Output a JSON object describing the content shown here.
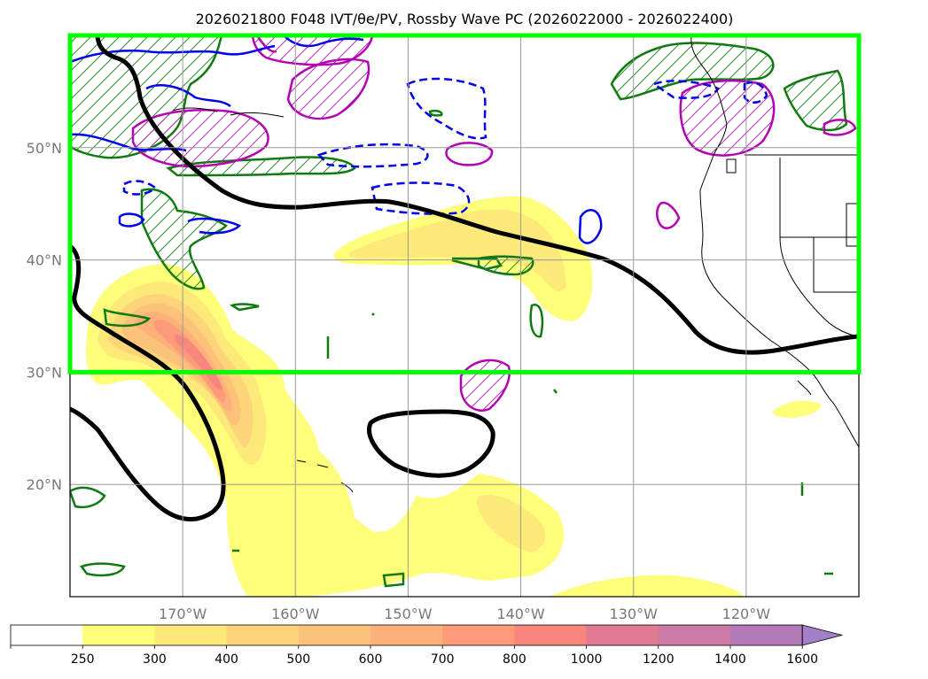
{
  "chart_data": {
    "type": "map",
    "title": "2026021800 F048 IVT/θe/PV, Rossby Wave PC (2026022000 - 2026022400)",
    "map_extent": {
      "lon": [
        -180,
        -110
      ],
      "lat": [
        10,
        60
      ]
    },
    "lon_ticks": [
      {
        "lon": -170,
        "label": "170°W"
      },
      {
        "lon": -160,
        "label": "160°W"
      },
      {
        "lon": -150,
        "label": "150°W"
      },
      {
        "lon": -140,
        "label": "140°W"
      },
      {
        "lon": -130,
        "label": "130°W"
      },
      {
        "lon": -120,
        "label": "120°W"
      }
    ],
    "lat_ticks": [
      {
        "lat": 50,
        "label": "50°N"
      },
      {
        "lat": 40,
        "label": "40°N"
      },
      {
        "lat": 30,
        "label": "30°N"
      },
      {
        "lat": 20,
        "label": "20°N"
      }
    ],
    "colorbar": {
      "levels": [
        "250",
        "300",
        "400",
        "500",
        "600",
        "700",
        "800",
        "1000",
        "1200",
        "1400",
        "1600"
      ],
      "colors": [
        "#ffffff",
        "#fefe7a",
        "#fde97a",
        "#fdd47a",
        "#fdc27a",
        "#fdb07a",
        "#fd9a7a",
        "#f8857e",
        "#e07a90",
        "#cc7aa6",
        "#b37ab8",
        "#a57ec8"
      ],
      "extend": "max"
    },
    "highlight_box": {
      "lon": [
        -180,
        -110
      ],
      "lat": [
        30,
        60
      ],
      "color": "#00ff00"
    },
    "layers": [
      {
        "name": "IVT",
        "kind": "filled-contour"
      },
      {
        "name": "Rossby wave PC",
        "kind": "contour",
        "color": "#000000"
      },
      {
        "name": "theta-e",
        "kind": "contour",
        "color": "#0000ff"
      },
      {
        "name": "PV",
        "kind": "contour",
        "color": "#c000c0"
      },
      {
        "name": "hatched",
        "kind": "hatch",
        "color": "#008000"
      }
    ]
  }
}
